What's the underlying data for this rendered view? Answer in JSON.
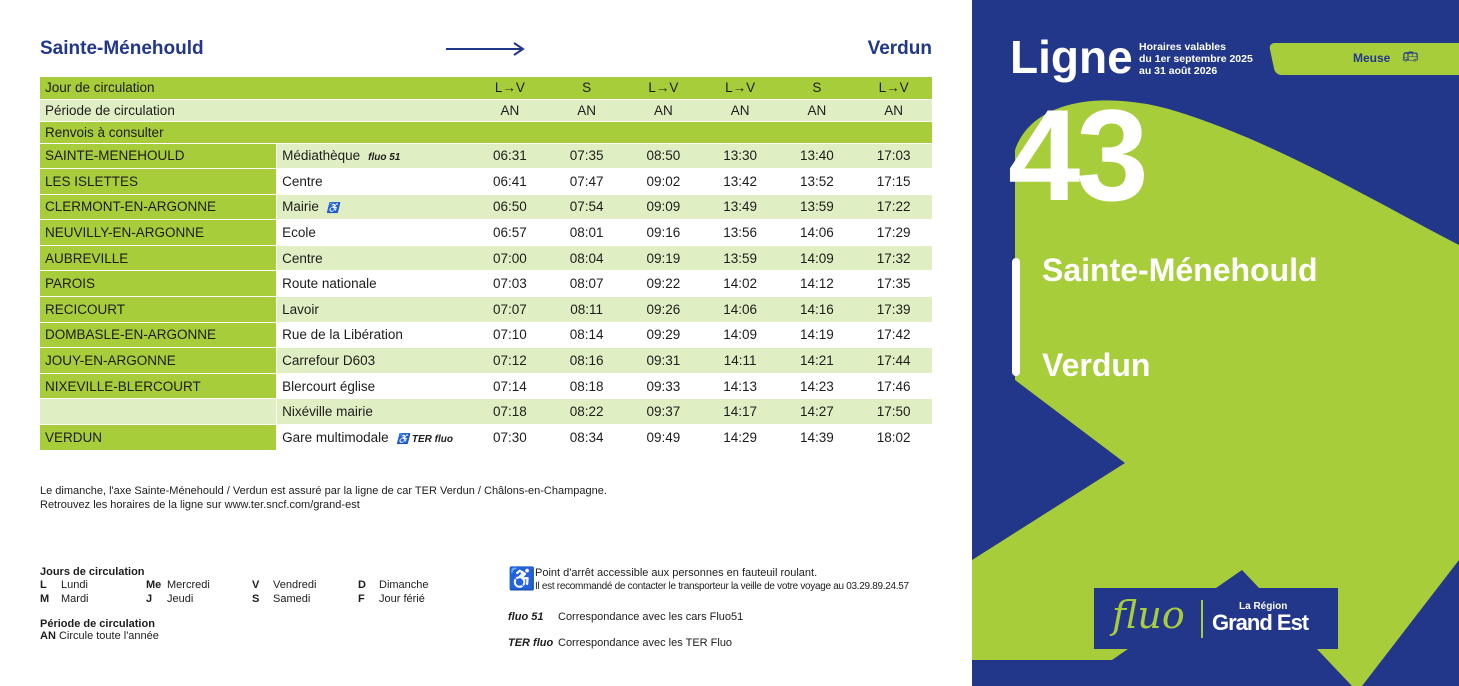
{
  "route": {
    "from": "Sainte-Ménehould",
    "to": "Verdun"
  },
  "table": {
    "header_rows": [
      {
        "label": "Jour de circulation",
        "values": [
          "L→V",
          "S",
          "L→V",
          "L→V",
          "S",
          "L→V"
        ]
      },
      {
        "label": "Période de circulation",
        "values": [
          "AN",
          "AN",
          "AN",
          "AN",
          "AN",
          "AN"
        ]
      },
      {
        "label": "Renvois à consulter",
        "values": [
          "",
          "",
          "",
          "",
          "",
          ""
        ]
      }
    ],
    "rows": [
      {
        "commune": "SAINTE-MENEHOULD",
        "stop": "Médiathèque",
        "tag": "fluo 51",
        "times": [
          "06:31",
          "07:35",
          "08:50",
          "13:30",
          "13:40",
          "17:03"
        ]
      },
      {
        "commune": "LES ISLETTES",
        "stop": "Centre",
        "tag": "",
        "times": [
          "06:41",
          "07:47",
          "09:02",
          "13:42",
          "13:52",
          "17:15"
        ]
      },
      {
        "commune": "CLERMONT-EN-ARGONNE",
        "stop": "Mairie",
        "tag": "♿",
        "times": [
          "06:50",
          "07:54",
          "09:09",
          "13:49",
          "13:59",
          "17:22"
        ]
      },
      {
        "commune": "NEUVILLY-EN-ARGONNE",
        "stop": "Ecole",
        "tag": "",
        "times": [
          "06:57",
          "08:01",
          "09:16",
          "13:56",
          "14:06",
          "17:29"
        ]
      },
      {
        "commune": "AUBREVILLE",
        "stop": "Centre",
        "tag": "",
        "times": [
          "07:00",
          "08:04",
          "09:19",
          "13:59",
          "14:09",
          "17:32"
        ]
      },
      {
        "commune": "PAROIS",
        "stop": "Route nationale",
        "tag": "",
        "times": [
          "07:03",
          "08:07",
          "09:22",
          "14:02",
          "14:12",
          "17:35"
        ]
      },
      {
        "commune": "RECICOURT",
        "stop": "Lavoir",
        "tag": "",
        "times": [
          "07:07",
          "08:11",
          "09:26",
          "14:06",
          "14:16",
          "17:39"
        ]
      },
      {
        "commune": "DOMBASLE-EN-ARGONNE",
        "stop": "Rue de la Libération",
        "tag": "",
        "times": [
          "07:10",
          "08:14",
          "09:29",
          "14:09",
          "14:19",
          "17:42"
        ]
      },
      {
        "commune": "JOUY-EN-ARGONNE",
        "stop": "Carrefour D603",
        "tag": "",
        "times": [
          "07:12",
          "08:16",
          "09:31",
          "14:11",
          "14:21",
          "17:44"
        ]
      },
      {
        "commune": "NIXEVILLE-BLERCOURT",
        "stop": "Blercourt église",
        "tag": "",
        "times": [
          "07:14",
          "08:18",
          "09:33",
          "14:13",
          "14:23",
          "17:46"
        ]
      },
      {
        "commune": "",
        "stop": "Nixéville mairie",
        "tag": "",
        "times": [
          "07:18",
          "08:22",
          "09:37",
          "14:17",
          "14:27",
          "17:50"
        ]
      },
      {
        "commune": "VERDUN",
        "stop": "Gare multimodale",
        "tag": "♿  TER fluo",
        "times": [
          "07:30",
          "08:34",
          "09:49",
          "14:29",
          "14:39",
          "18:02"
        ]
      }
    ]
  },
  "notes": [
    "Le dimanche, l'axe Sainte-Ménehould / Verdun est assuré par la ligne de car TER Verdun / Châlons-en-Champagne.",
    "Retrouvez les horaires de la ligne sur www.ter.sncf.com/grand-est"
  ],
  "legend": {
    "days_title": "Jours de circulation",
    "days": [
      [
        "L",
        "Lundi"
      ],
      [
        "Me",
        "Mercredi"
      ],
      [
        "V",
        "Vendredi"
      ],
      [
        "D",
        "Dimanche"
      ],
      [
        "M",
        "Mardi"
      ],
      [
        "J",
        "Jeudi"
      ],
      [
        "S",
        "Samedi"
      ],
      [
        "F",
        "Jour férié"
      ]
    ],
    "period_title": "Période de circulation",
    "period": [
      "AN",
      "Circule toute l'année"
    ],
    "access_1": "Point d'arrêt accessible aux personnes en fauteuil roulant.",
    "access_2": "Il est recommandé de contacter le transporteur la veille de votre voyage au 03.29.89.24.57",
    "fluo51_tag": "fluo 51",
    "fluo51_text": "Correspondance avec les cars Fluo51",
    "ter_tag": "TER fluo",
    "ter_text": "Correspondance avec les TER Fluo"
  },
  "panel": {
    "ligne": "Ligne",
    "validity": [
      "Horaires valables",
      "du 1er septembre 2025",
      "au 31 août 2026"
    ],
    "region": "Meuse",
    "number": "43",
    "from": "Sainte-Ménehould",
    "to": "Verdun",
    "logo_fluo": "fluo",
    "logo_region_small": "La Région",
    "logo_region_big": "Grand Est"
  },
  "colors": {
    "blue": "#22378a",
    "green": "#a8cd3a",
    "light": "#e0eec4"
  }
}
